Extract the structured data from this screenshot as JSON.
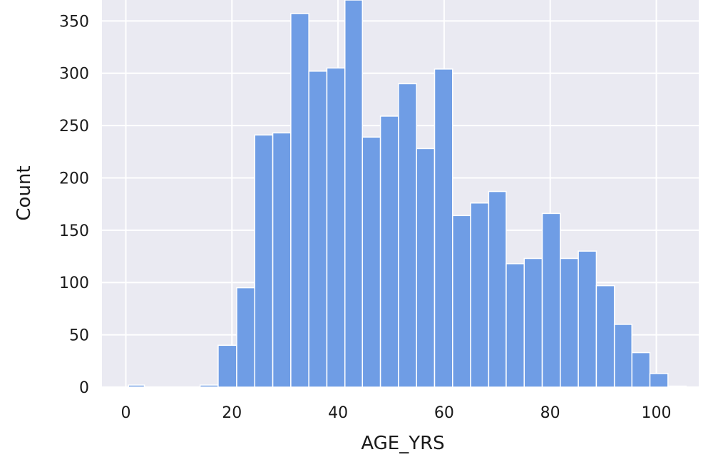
{
  "chart_data": {
    "type": "bar",
    "title": "",
    "xlabel": "AGE_YRS",
    "ylabel": "Count",
    "xlim": [
      -4.5,
      108
    ],
    "ylim": [
      0,
      370
    ],
    "xticks": [
      0,
      20,
      40,
      60,
      80,
      100
    ],
    "yticks": [
      0,
      50,
      100,
      150,
      200,
      250,
      300,
      350
    ],
    "grid": true,
    "colors": {
      "bar": "#6f9de5",
      "plot_background": "#eaeaf2",
      "grid": "#ffffff"
    },
    "bins": [
      {
        "x0": 0.5,
        "x1": 3.5,
        "count": 2
      },
      {
        "x0": 3.5,
        "x1": 7.0,
        "count": 0
      },
      {
        "x0": 7.0,
        "x1": 10.5,
        "count": 0
      },
      {
        "x0": 10.5,
        "x1": 14.0,
        "count": 0
      },
      {
        "x0": 14.0,
        "x1": 17.4,
        "count": 2
      },
      {
        "x0": 17.4,
        "x1": 20.9,
        "count": 40
      },
      {
        "x0": 20.9,
        "x1": 24.3,
        "count": 95
      },
      {
        "x0": 24.3,
        "x1": 27.7,
        "count": 241
      },
      {
        "x0": 27.7,
        "x1": 31.1,
        "count": 243
      },
      {
        "x0": 31.1,
        "x1": 34.5,
        "count": 357
      },
      {
        "x0": 34.5,
        "x1": 37.9,
        "count": 302
      },
      {
        "x0": 37.9,
        "x1": 41.3,
        "count": 305
      },
      {
        "x0": 41.3,
        "x1": 44.6,
        "count": 370
      },
      {
        "x0": 44.6,
        "x1": 48.0,
        "count": 239
      },
      {
        "x0": 48.0,
        "x1": 51.4,
        "count": 259
      },
      {
        "x0": 51.4,
        "x1": 54.8,
        "count": 290
      },
      {
        "x0": 54.8,
        "x1": 58.2,
        "count": 228
      },
      {
        "x0": 58.2,
        "x1": 61.6,
        "count": 304
      },
      {
        "x0": 61.6,
        "x1": 65.0,
        "count": 164
      },
      {
        "x0": 65.0,
        "x1": 68.4,
        "count": 176
      },
      {
        "x0": 68.4,
        "x1": 71.7,
        "count": 187
      },
      {
        "x0": 71.7,
        "x1": 75.1,
        "count": 118
      },
      {
        "x0": 75.1,
        "x1": 78.5,
        "count": 123
      },
      {
        "x0": 78.5,
        "x1": 81.9,
        "count": 166
      },
      {
        "x0": 81.9,
        "x1": 85.3,
        "count": 123
      },
      {
        "x0": 85.3,
        "x1": 88.7,
        "count": 130
      },
      {
        "x0": 88.7,
        "x1": 92.1,
        "count": 97
      },
      {
        "x0": 92.1,
        "x1": 95.4,
        "count": 60
      },
      {
        "x0": 95.4,
        "x1": 98.8,
        "count": 33
      },
      {
        "x0": 98.8,
        "x1": 102.2,
        "count": 13
      },
      {
        "x0": 102.2,
        "x1": 105.6,
        "count": 1
      }
    ]
  }
}
